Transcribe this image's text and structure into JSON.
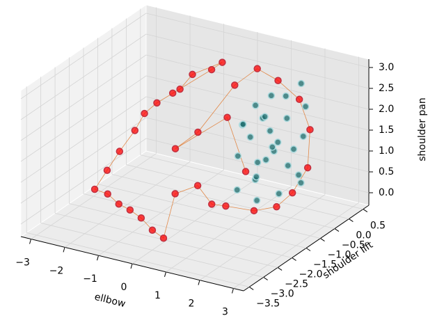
{
  "chart_data": {
    "type": "scatter3d",
    "xlabel": "ellbow",
    "ylabel": "shoulder lift",
    "zlabel": "shoulder pan",
    "xlim": [
      -3.3,
      3.3
    ],
    "ylim": [
      -3.7,
      0.7
    ],
    "zlim": [
      -0.3,
      3.2
    ],
    "xticks": [
      {
        "value": -3,
        "label": "−3"
      },
      {
        "value": -2,
        "label": "−2"
      },
      {
        "value": -1,
        "label": "−1"
      },
      0,
      1,
      2,
      3
    ],
    "yticks": [
      {
        "value": -3.5,
        "label": "−3.5"
      },
      {
        "value": -3,
        "label": "−3.0"
      },
      {
        "value": -2.5,
        "label": "−2.5"
      },
      {
        "value": -2,
        "label": "−2.0"
      },
      {
        "value": -1.5,
        "label": "−1.5"
      },
      {
        "value": -1,
        "label": "−1.0"
      },
      {
        "value": -0.5,
        "label": "−0.5"
      },
      {
        "value": 0,
        "label": "0.0"
      },
      0.5
    ],
    "zticks": [
      {
        "value": 0,
        "label": "0.0"
      },
      0.5,
      {
        "value": 1,
        "label": "1.0"
      },
      1.5,
      {
        "value": 2,
        "label": "2.0"
      },
      2.5,
      {
        "value": 3,
        "label": "3.0"
      }
    ],
    "grid": true,
    "series": [
      {
        "color": "#ff0000",
        "edge_color": "#c03040",
        "line_color": "#e07020",
        "x": [
          -1.5,
          -1.2,
          -1.0,
          -0.2,
          -0.6,
          -1.8,
          -2.0,
          -2.2,
          -2.4,
          -2.6,
          -2.8,
          -2.5,
          -2.0,
          -1.5,
          -1.0,
          -0.5,
          0.0,
          -0.5,
          0.0,
          0.5,
          1.0,
          1.5,
          2.0,
          2.3,
          2.5,
          2.4,
          2.0,
          1.2,
          0.5,
          0.0,
          -0.5,
          -1.0,
          0.2,
          1.0
        ],
        "y": [
          -0.5,
          -0.6,
          -0.4,
          -0.3,
          -0.2,
          -0.7,
          -0.9,
          -1.0,
          -1.3,
          -1.5,
          -1.7,
          -1.6,
          -1.8,
          -2.0,
          -2.2,
          -2.4,
          -2.6,
          -1.6,
          -1.4,
          -1.5,
          -1.6,
          -1.2,
          -1.0,
          -0.8,
          -0.5,
          -0.3,
          -0.2,
          0.0,
          0.1,
          -0.1,
          -0.8,
          -1.0,
          -0.6,
          -0.9
        ],
        "z": [
          2.0,
          2.2,
          2.5,
          2.9,
          2.6,
          1.8,
          1.6,
          1.2,
          0.8,
          0.4,
          0.0,
          -0.1,
          -0.15,
          -0.1,
          -0.1,
          -0.2,
          -0.2,
          0.3,
          0.5,
          0.2,
          0.3,
          0.1,
          0.2,
          0.5,
          1.0,
          1.8,
          2.4,
          2.6,
          2.7,
          2.3,
          1.4,
          1.0,
          1.8,
          0.8
        ]
      },
      {
        "color": "#1b6b6b",
        "edge_color": "#a8d8dc",
        "x": [
          1.5,
          1.0,
          1.8,
          2.0,
          1.2,
          0.8,
          1.6,
          2.2,
          1.4,
          0.6,
          1.0,
          1.9,
          2.3,
          1.3,
          0.9,
          1.7,
          1.1,
          2.1,
          0.7,
          1.5,
          1.8,
          1.2,
          0.5,
          2.0,
          1.4,
          1.6,
          1.0,
          2.4
        ],
        "y": [
          -0.5,
          -0.3,
          -0.4,
          -0.6,
          -0.8,
          -0.5,
          -0.2,
          -0.3,
          -1.0,
          -0.7,
          0.0,
          -0.8,
          -0.5,
          -0.4,
          -0.9,
          -0.6,
          -0.6,
          -0.1,
          -0.2,
          -1.1,
          0.1,
          -0.2,
          -0.4,
          -0.4,
          -0.7,
          -0.9,
          -1.2,
          -0.7
        ],
        "z": [
          1.2,
          1.8,
          2.0,
          1.0,
          0.6,
          1.4,
          2.4,
          1.6,
          0.8,
          1.0,
          2.2,
          0.4,
          0.6,
          1.6,
          1.9,
          1.5,
          0.9,
          2.2,
          2.0,
          0.3,
          2.6,
          1.1,
          1.6,
          1.3,
          2.1,
          1.2,
          0.5,
          0.9
        ]
      }
    ]
  }
}
